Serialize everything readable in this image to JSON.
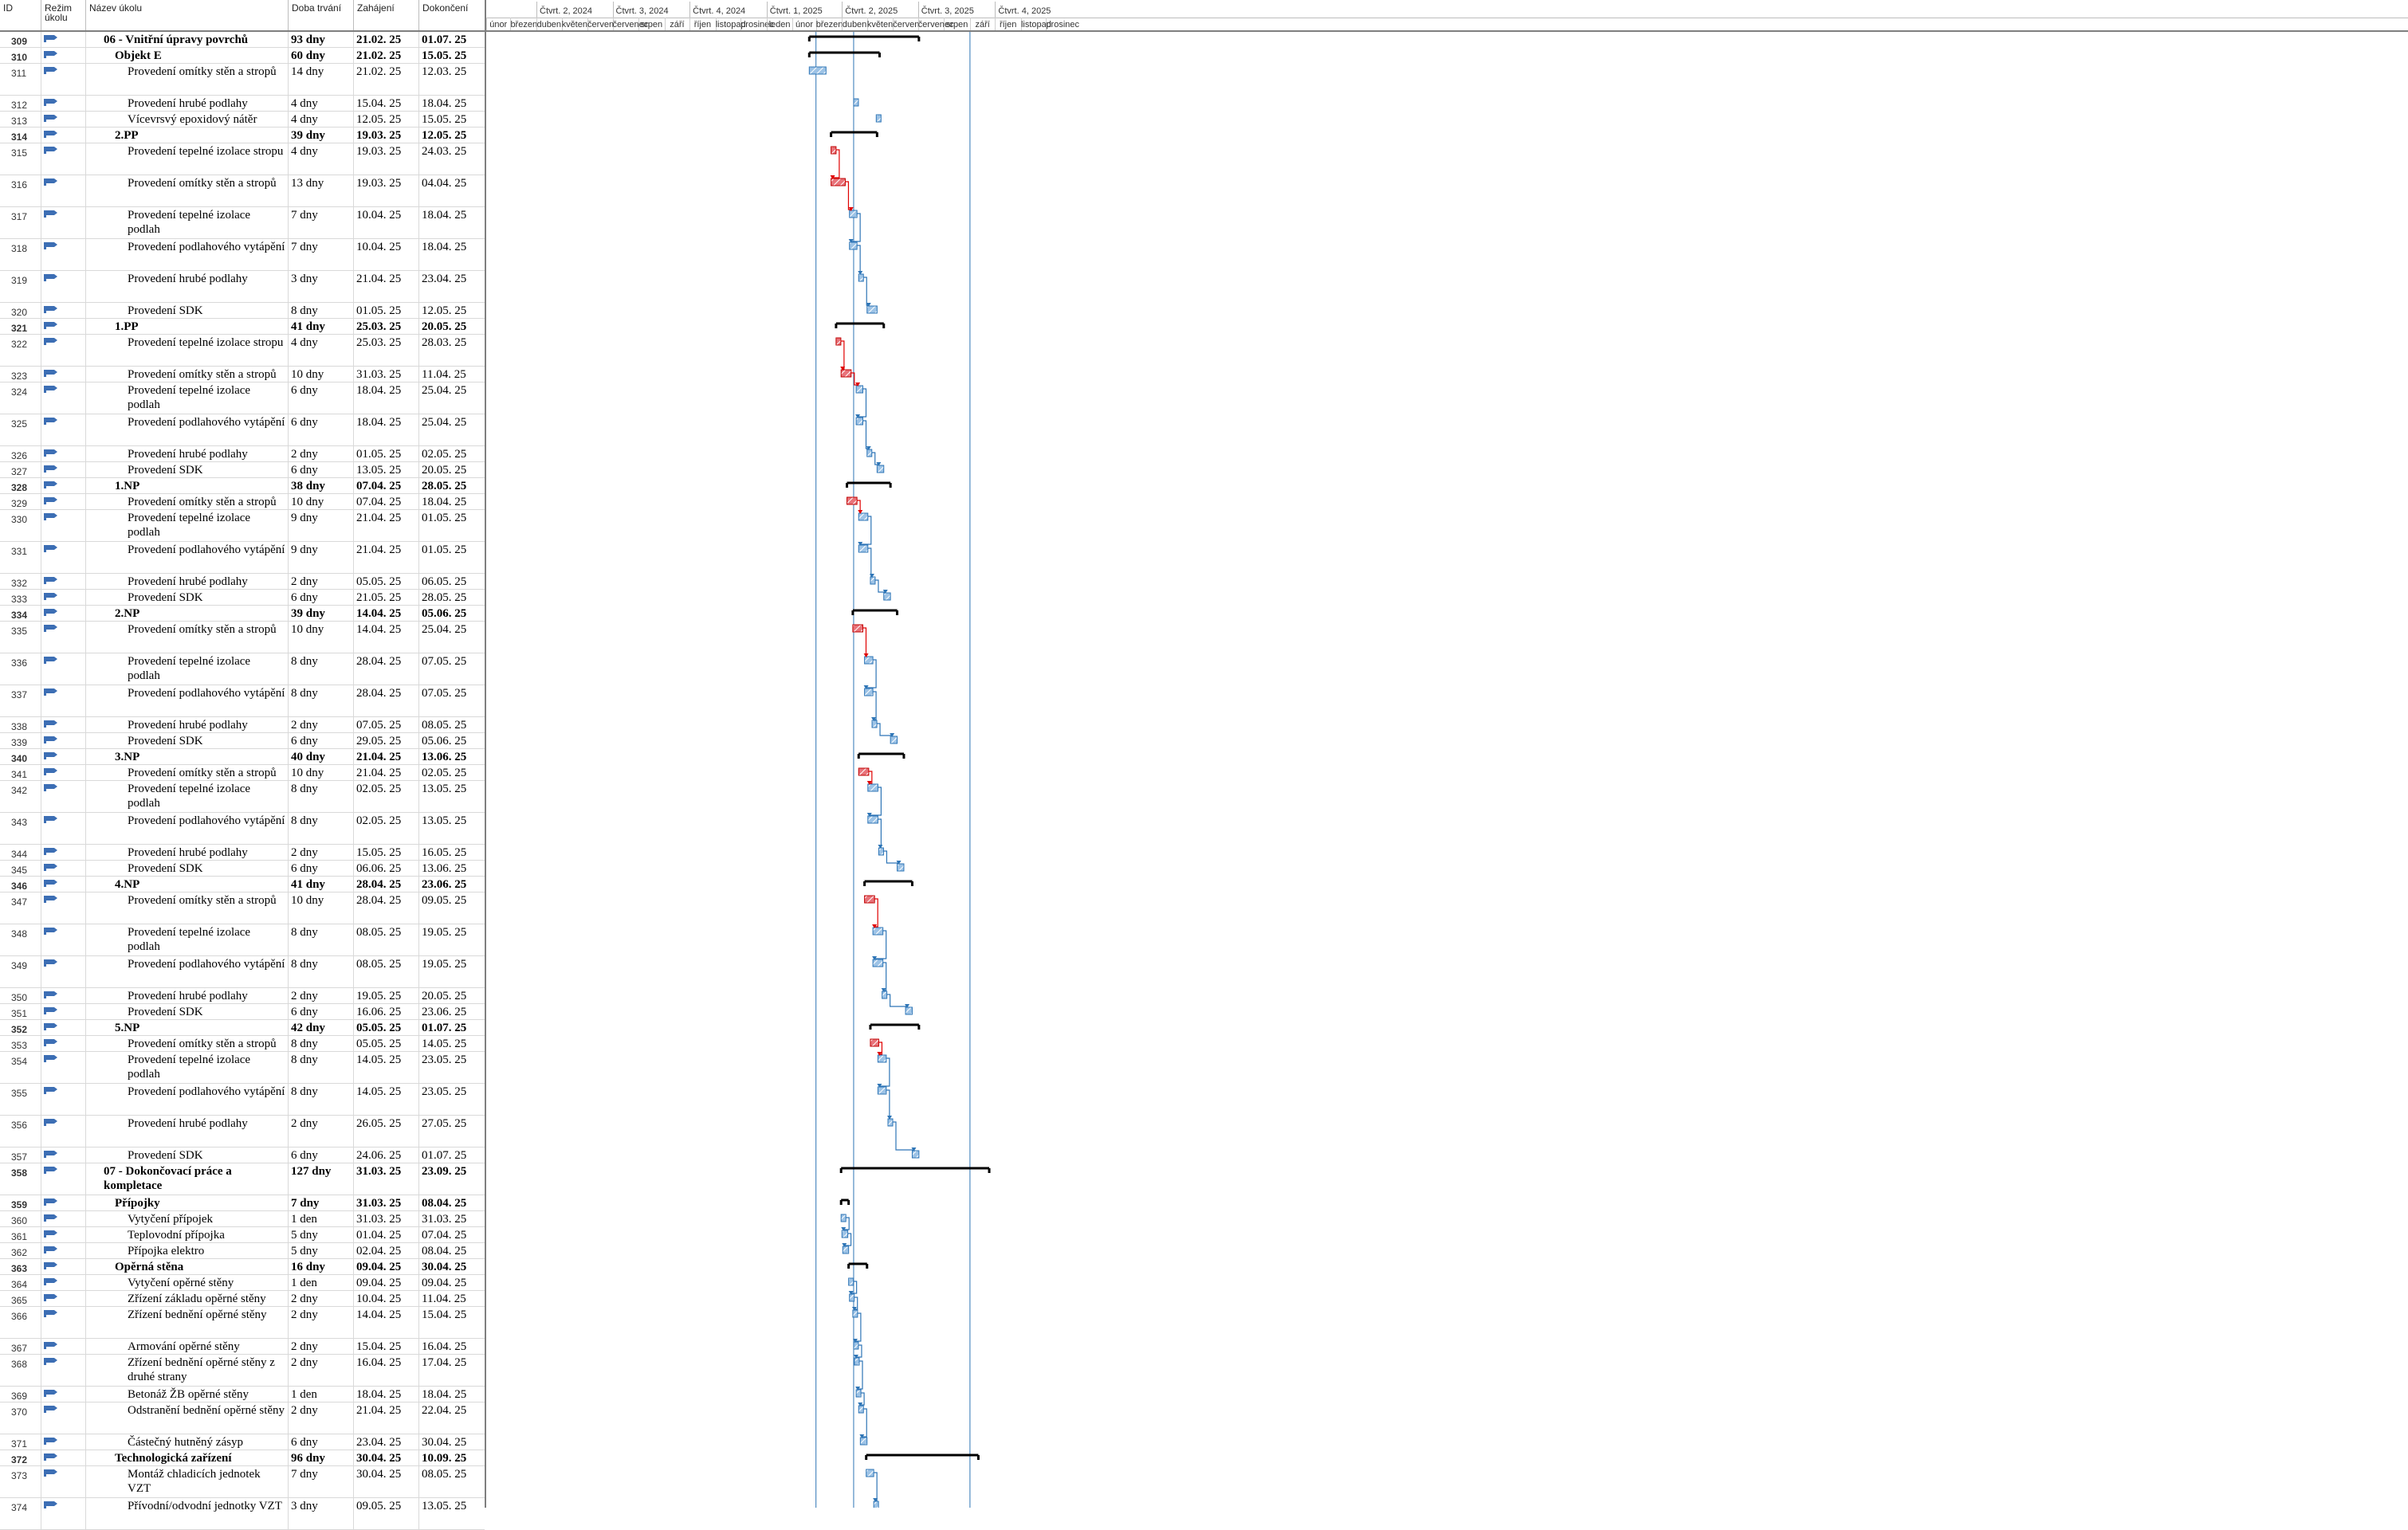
{
  "table": {
    "headers": {
      "id": "ID",
      "mode": "Režim úkolu",
      "name": "Název úkolu",
      "duration": "Doba trvání",
      "start": "Zahájení",
      "finish": "Dokončení"
    },
    "rows": [
      {
        "id": "309",
        "name": "06 - Vnitřní úpravy povrchů",
        "duration": "93 dny",
        "start": "21.02. 25",
        "finish": "01.07. 25",
        "summary": true,
        "indent": 1,
        "lines": 1
      },
      {
        "id": "310",
        "name": "Objekt E",
        "duration": "60 dny",
        "start": "21.02. 25",
        "finish": "15.05. 25",
        "summary": true,
        "indent": 2,
        "lines": 1
      },
      {
        "id": "311",
        "name": "Provedení omítky stěn a stropů",
        "duration": "14 dny",
        "start": "21.02. 25",
        "finish": "12.03. 25",
        "summary": false,
        "indent": 3,
        "lines": 2
      },
      {
        "id": "312",
        "name": "Provedení hrubé podlahy",
        "duration": "4 dny",
        "start": "15.04. 25",
        "finish": "18.04. 25",
        "summary": false,
        "indent": 3,
        "lines": 1
      },
      {
        "id": "313",
        "name": "Vícevrsvý epoxidový nátěr",
        "duration": "4 dny",
        "start": "12.05. 25",
        "finish": "15.05. 25",
        "summary": false,
        "indent": 3,
        "lines": 1
      },
      {
        "id": "314",
        "name": "2.PP",
        "duration": "39 dny",
        "start": "19.03. 25",
        "finish": "12.05. 25",
        "summary": true,
        "indent": 2,
        "lines": 1
      },
      {
        "id": "315",
        "name": "Provedení tepelné izolace stropu",
        "duration": "4 dny",
        "start": "19.03. 25",
        "finish": "24.03. 25",
        "summary": false,
        "indent": 3,
        "lines": 2
      },
      {
        "id": "316",
        "name": "Provedení omítky stěn a stropů",
        "duration": "13 dny",
        "start": "19.03. 25",
        "finish": "04.04. 25",
        "summary": false,
        "indent": 3,
        "lines": 2
      },
      {
        "id": "317",
        "name": "Provedení tepelné izolace podlah",
        "duration": "7 dny",
        "start": "10.04. 25",
        "finish": "18.04. 25",
        "summary": false,
        "indent": 3,
        "lines": 2
      },
      {
        "id": "318",
        "name": "Provedení podlahového vytápění",
        "duration": "7 dny",
        "start": "10.04. 25",
        "finish": "18.04. 25",
        "summary": false,
        "indent": 3,
        "lines": 2
      },
      {
        "id": "319",
        "name": "Provedení hrubé podlahy",
        "duration": "3 dny",
        "start": "21.04. 25",
        "finish": "23.04. 25",
        "summary": false,
        "indent": 3,
        "lines": 2
      },
      {
        "id": "320",
        "name": "Provedení SDK",
        "duration": "8 dny",
        "start": "01.05. 25",
        "finish": "12.05. 25",
        "summary": false,
        "indent": 3,
        "lines": 1
      },
      {
        "id": "321",
        "name": "1.PP",
        "duration": "41 dny",
        "start": "25.03. 25",
        "finish": "20.05. 25",
        "summary": true,
        "indent": 2,
        "lines": 1
      },
      {
        "id": "322",
        "name": "Provedení tepelné izolace stropu",
        "duration": "4 dny",
        "start": "25.03. 25",
        "finish": "28.03. 25",
        "summary": false,
        "indent": 3,
        "lines": 2
      },
      {
        "id": "323",
        "name": "Provedení omítky stěn a stropů",
        "duration": "10 dny",
        "start": "31.03. 25",
        "finish": "11.04. 25",
        "summary": false,
        "indent": 3,
        "lines": 1
      },
      {
        "id": "324",
        "name": "Provedení tepelné izolace podlah",
        "duration": "6 dny",
        "start": "18.04. 25",
        "finish": "25.04. 25",
        "summary": false,
        "indent": 3,
        "lines": 2
      },
      {
        "id": "325",
        "name": "Provedení podlahového vytápění",
        "duration": "6 dny",
        "start": "18.04. 25",
        "finish": "25.04. 25",
        "summary": false,
        "indent": 3,
        "lines": 2
      },
      {
        "id": "326",
        "name": "Provedení hrubé podlahy",
        "duration": "2 dny",
        "start": "01.05. 25",
        "finish": "02.05. 25",
        "summary": false,
        "indent": 3,
        "lines": 1
      },
      {
        "id": "327",
        "name": "Provedení SDK",
        "duration": "6 dny",
        "start": "13.05. 25",
        "finish": "20.05. 25",
        "summary": false,
        "indent": 3,
        "lines": 1
      },
      {
        "id": "328",
        "name": "1.NP",
        "duration": "38 dny",
        "start": "07.04. 25",
        "finish": "28.05. 25",
        "summary": true,
        "indent": 2,
        "lines": 1
      },
      {
        "id": "329",
        "name": "Provedení omítky stěn a stropů",
        "duration": "10 dny",
        "start": "07.04. 25",
        "finish": "18.04. 25",
        "summary": false,
        "indent": 3,
        "lines": 1
      },
      {
        "id": "330",
        "name": "Provedení tepelné izolace podlah",
        "duration": "9 dny",
        "start": "21.04. 25",
        "finish": "01.05. 25",
        "summary": false,
        "indent": 3,
        "lines": 2
      },
      {
        "id": "331",
        "name": "Provedení podlahového vytápění",
        "duration": "9 dny",
        "start": "21.04. 25",
        "finish": "01.05. 25",
        "summary": false,
        "indent": 3,
        "lines": 2
      },
      {
        "id": "332",
        "name": "Provedení hrubé podlahy",
        "duration": "2 dny",
        "start": "05.05. 25",
        "finish": "06.05. 25",
        "summary": false,
        "indent": 3,
        "lines": 1
      },
      {
        "id": "333",
        "name": "Provedení SDK",
        "duration": "6 dny",
        "start": "21.05. 25",
        "finish": "28.05. 25",
        "summary": false,
        "indent": 3,
        "lines": 1
      },
      {
        "id": "334",
        "name": "2.NP",
        "duration": "39 dny",
        "start": "14.04. 25",
        "finish": "05.06. 25",
        "summary": true,
        "indent": 2,
        "lines": 1
      },
      {
        "id": "335",
        "name": "Provedení omítky stěn a stropů",
        "duration": "10 dny",
        "start": "14.04. 25",
        "finish": "25.04. 25",
        "summary": false,
        "indent": 3,
        "lines": 2
      },
      {
        "id": "336",
        "name": "Provedení tepelné izolace podlah",
        "duration": "8 dny",
        "start": "28.04. 25",
        "finish": "07.05. 25",
        "summary": false,
        "indent": 3,
        "lines": 2
      },
      {
        "id": "337",
        "name": "Provedení podlahového vytápění",
        "duration": "8 dny",
        "start": "28.04. 25",
        "finish": "07.05. 25",
        "summary": false,
        "indent": 3,
        "lines": 2
      },
      {
        "id": "338",
        "name": "Provedení hrubé podlahy",
        "duration": "2 dny",
        "start": "07.05. 25",
        "finish": "08.05. 25",
        "summary": false,
        "indent": 3,
        "lines": 1
      },
      {
        "id": "339",
        "name": "Provedení SDK",
        "duration": "6 dny",
        "start": "29.05. 25",
        "finish": "05.06. 25",
        "summary": false,
        "indent": 3,
        "lines": 1
      },
      {
        "id": "340",
        "name": "3.NP",
        "duration": "40 dny",
        "start": "21.04. 25",
        "finish": "13.06. 25",
        "summary": true,
        "indent": 2,
        "lines": 1
      },
      {
        "id": "341",
        "name": "Provedení omítky stěn a stropů",
        "duration": "10 dny",
        "start": "21.04. 25",
        "finish": "02.05. 25",
        "summary": false,
        "indent": 3,
        "lines": 1
      },
      {
        "id": "342",
        "name": "Provedení tepelné izolace podlah",
        "duration": "8 dny",
        "start": "02.05. 25",
        "finish": "13.05. 25",
        "summary": false,
        "indent": 3,
        "lines": 2
      },
      {
        "id": "343",
        "name": "Provedení podlahového vytápění",
        "duration": "8 dny",
        "start": "02.05. 25",
        "finish": "13.05. 25",
        "summary": false,
        "indent": 3,
        "lines": 2
      },
      {
        "id": "344",
        "name": "Provedení hrubé podlahy",
        "duration": "2 dny",
        "start": "15.05. 25",
        "finish": "16.05. 25",
        "summary": false,
        "indent": 3,
        "lines": 1
      },
      {
        "id": "345",
        "name": "Provedení SDK",
        "duration": "6 dny",
        "start": "06.06. 25",
        "finish": "13.06. 25",
        "summary": false,
        "indent": 3,
        "lines": 1
      },
      {
        "id": "346",
        "name": "4.NP",
        "duration": "41 dny",
        "start": "28.04. 25",
        "finish": "23.06. 25",
        "summary": true,
        "indent": 2,
        "lines": 1
      },
      {
        "id": "347",
        "name": "Provedení omítky stěn a stropů",
        "duration": "10 dny",
        "start": "28.04. 25",
        "finish": "09.05. 25",
        "summary": false,
        "indent": 3,
        "lines": 2
      },
      {
        "id": "348",
        "name": "Provedení tepelné izolace podlah",
        "duration": "8 dny",
        "start": "08.05. 25",
        "finish": "19.05. 25",
        "summary": false,
        "indent": 3,
        "lines": 2
      },
      {
        "id": "349",
        "name": "Provedení podlahového vytápění",
        "duration": "8 dny",
        "start": "08.05. 25",
        "finish": "19.05. 25",
        "summary": false,
        "indent": 3,
        "lines": 2
      },
      {
        "id": "350",
        "name": "Provedení hrubé podlahy",
        "duration": "2 dny",
        "start": "19.05. 25",
        "finish": "20.05. 25",
        "summary": false,
        "indent": 3,
        "lines": 1
      },
      {
        "id": "351",
        "name": "Provedení SDK",
        "duration": "6 dny",
        "start": "16.06. 25",
        "finish": "23.06. 25",
        "summary": false,
        "indent": 3,
        "lines": 1
      },
      {
        "id": "352",
        "name": "5.NP",
        "duration": "42 dny",
        "start": "05.05. 25",
        "finish": "01.07. 25",
        "summary": true,
        "indent": 2,
        "lines": 1
      },
      {
        "id": "353",
        "name": "Provedení omítky stěn a stropů",
        "duration": "8 dny",
        "start": "05.05. 25",
        "finish": "14.05. 25",
        "summary": false,
        "indent": 3,
        "lines": 1
      },
      {
        "id": "354",
        "name": "Provedení tepelné izolace podlah",
        "duration": "8 dny",
        "start": "14.05. 25",
        "finish": "23.05. 25",
        "summary": false,
        "indent": 3,
        "lines": 2
      },
      {
        "id": "355",
        "name": "Provedení podlahového vytápění",
        "duration": "8 dny",
        "start": "14.05. 25",
        "finish": "23.05. 25",
        "summary": false,
        "indent": 3,
        "lines": 2
      },
      {
        "id": "356",
        "name": "Provedení hrubé podlahy",
        "duration": "2 dny",
        "start": "26.05. 25",
        "finish": "27.05. 25",
        "summary": false,
        "indent": 3,
        "lines": 2
      },
      {
        "id": "357",
        "name": "Provedení SDK",
        "duration": "6 dny",
        "start": "24.06. 25",
        "finish": "01.07. 25",
        "summary": false,
        "indent": 3,
        "lines": 1
      },
      {
        "id": "358",
        "name": "07 - Dokončovací práce a kompletace",
        "duration": "127 dny",
        "start": "31.03. 25",
        "finish": "23.09. 25",
        "summary": true,
        "indent": 1,
        "lines": 2
      },
      {
        "id": "359",
        "name": "Přípojky",
        "duration": "7 dny",
        "start": "31.03. 25",
        "finish": "08.04. 25",
        "summary": true,
        "indent": 2,
        "lines": 1
      },
      {
        "id": "360",
        "name": "Vytyčení přípojek",
        "duration": "1 den",
        "start": "31.03. 25",
        "finish": "31.03. 25",
        "summary": false,
        "indent": 3,
        "lines": 1
      },
      {
        "id": "361",
        "name": "Teplovodní přípojka",
        "duration": "5 dny",
        "start": "01.04. 25",
        "finish": "07.04. 25",
        "summary": false,
        "indent": 3,
        "lines": 1
      },
      {
        "id": "362",
        "name": "Přípojka elektro",
        "duration": "5 dny",
        "start": "02.04. 25",
        "finish": "08.04. 25",
        "summary": false,
        "indent": 3,
        "lines": 1
      },
      {
        "id": "363",
        "name": "Opěrná stěna",
        "duration": "16 dny",
        "start": "09.04. 25",
        "finish": "30.04. 25",
        "summary": true,
        "indent": 2,
        "lines": 1
      },
      {
        "id": "364",
        "name": "Vytyčení opěrné stěny",
        "duration": "1 den",
        "start": "09.04. 25",
        "finish": "09.04. 25",
        "summary": false,
        "indent": 3,
        "lines": 1
      },
      {
        "id": "365",
        "name": "Zřízení základu opěrné stěny",
        "duration": "2 dny",
        "start": "10.04. 25",
        "finish": "11.04. 25",
        "summary": false,
        "indent": 3,
        "lines": 1
      },
      {
        "id": "366",
        "name": "Zřízení bednění opěrné stěny",
        "duration": "2 dny",
        "start": "14.04. 25",
        "finish": "15.04. 25",
        "summary": false,
        "indent": 3,
        "lines": 2
      },
      {
        "id": "367",
        "name": "Armování opěrné stěny",
        "duration": "2 dny",
        "start": "15.04. 25",
        "finish": "16.04. 25",
        "summary": false,
        "indent": 3,
        "lines": 1
      },
      {
        "id": "368",
        "name": "Zřízení bednění opěrné stěny z druhé strany",
        "duration": "2 dny",
        "start": "16.04. 25",
        "finish": "17.04. 25",
        "summary": false,
        "indent": 3,
        "lines": 2
      },
      {
        "id": "369",
        "name": "Betonáž ŽB opěrné stěny",
        "duration": "1 den",
        "start": "18.04. 25",
        "finish": "18.04. 25",
        "summary": false,
        "indent": 3,
        "lines": 1
      },
      {
        "id": "370",
        "name": "Odstranění bednění opěrné stěny",
        "duration": "2 dny",
        "start": "21.04. 25",
        "finish": "22.04. 25",
        "summary": false,
        "indent": 3,
        "lines": 2
      },
      {
        "id": "371",
        "name": "Částečný hutněný zásyp",
        "duration": "6 dny",
        "start": "23.04. 25",
        "finish": "30.04. 25",
        "summary": false,
        "indent": 3,
        "lines": 1
      },
      {
        "id": "372",
        "name": "Technologická zařízení",
        "duration": "96 dny",
        "start": "30.04. 25",
        "finish": "10.09. 25",
        "summary": true,
        "indent": 2,
        "lines": 1
      },
      {
        "id": "373",
        "name": "Montáž chladicích jednotek VZT",
        "duration": "7 dny",
        "start": "30.04. 25",
        "finish": "08.05. 25",
        "summary": false,
        "indent": 3,
        "lines": 2
      },
      {
        "id": "374",
        "name": "Přívodní/odvodní jednotky VZT",
        "duration": "3 dny",
        "start": "09.05. 25",
        "finish": "13.05. 25",
        "summary": false,
        "indent": 3,
        "lines": 2
      }
    ]
  },
  "timescale": {
    "quarters": [
      "Čtvrt. 2, 2024",
      "Čtvrt. 3, 2024",
      "Čtvrt. 4, 2024",
      "Čtvrt. 1, 2025",
      "Čtvrt. 2, 2025",
      "Čtvrt. 3, 2025",
      "Čtvrt. 4, 2025"
    ],
    "months": [
      "únor",
      "březen",
      "duben",
      "květen",
      "červen",
      "červenec",
      "srpen",
      "září",
      "říjen",
      "listopad",
      "prosinec",
      "leden",
      "únor",
      "březen",
      "duben",
      "květen",
      "červen",
      "červenec",
      "srpen",
      "září",
      "říjen",
      "listopad",
      "prosinec"
    ]
  },
  "colors": {
    "task_bar": "#9dc3e6",
    "task_bar_border": "#2e75b6",
    "critical_bar": "#e8737a",
    "critical_border": "#c00000",
    "link_normal": "#2e75b6",
    "link_critical": "#e00000",
    "summary_bar": "#000000",
    "mode_icon": "#3c6eb4"
  }
}
